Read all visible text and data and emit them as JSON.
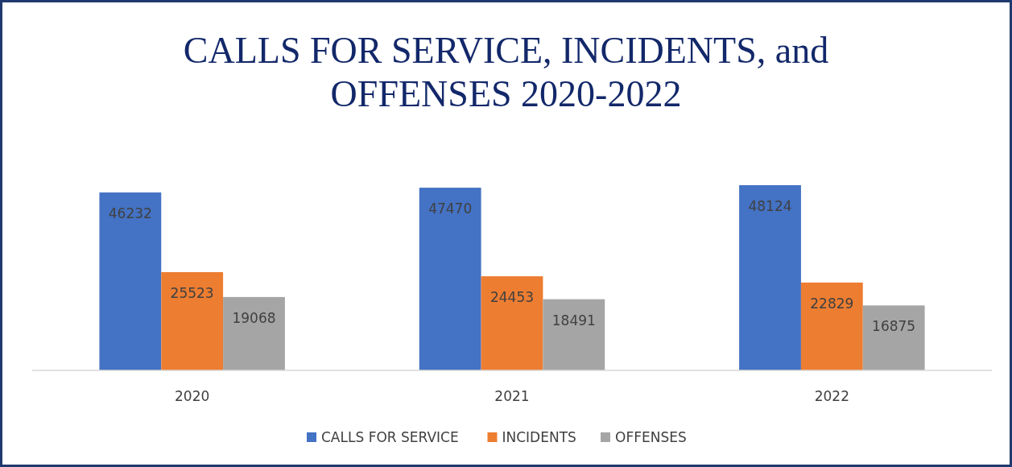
{
  "chart_data": {
    "type": "bar",
    "title": "CALLS FOR SERVICE, INCIDENTS, and OFFENSES 2020-2022",
    "categories": [
      "2020",
      "2021",
      "2022"
    ],
    "series": [
      {
        "name": "CALLS FOR SERVICE",
        "color": "#4472c4",
        "values": [
          46232,
          47470,
          48124
        ]
      },
      {
        "name": "INCIDENTS",
        "color": "#ed7d31",
        "values": [
          25523,
          24453,
          22829
        ]
      },
      {
        "name": "OFFENSES",
        "color": "#a5a5a5",
        "values": [
          19068,
          18491,
          16875
        ]
      }
    ],
    "data_labels": true,
    "legend": "bottom"
  }
}
